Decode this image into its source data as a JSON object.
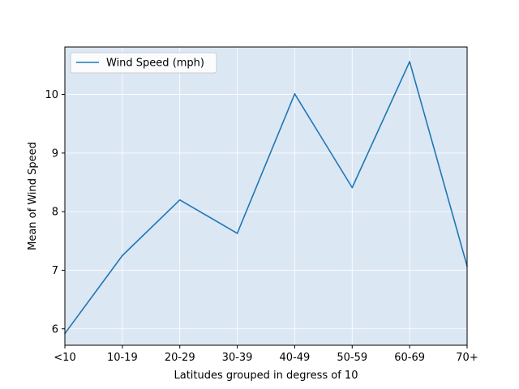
{
  "chart_data": {
    "type": "line",
    "categories": [
      "<10",
      "10-19",
      "20-29",
      "30-39",
      "40-49",
      "50-59",
      "60-69",
      "70+"
    ],
    "series": [
      {
        "name": "Wind Speed (mph)",
        "values": [
          5.92,
          7.25,
          8.2,
          7.63,
          10.01,
          8.41,
          10.56,
          7.07
        ],
        "color": "#1f77b4"
      }
    ],
    "xlabel": "Latitudes grouped in degress of 10",
    "ylabel": "Mean of Wind Speed",
    "ylim": [
      5.72,
      10.81
    ],
    "yticks": [
      6,
      7,
      8,
      9,
      10
    ],
    "grid": true,
    "legend_position": "upper-left",
    "background_color": "#dce7f4",
    "grid_color": "#ffffff"
  }
}
